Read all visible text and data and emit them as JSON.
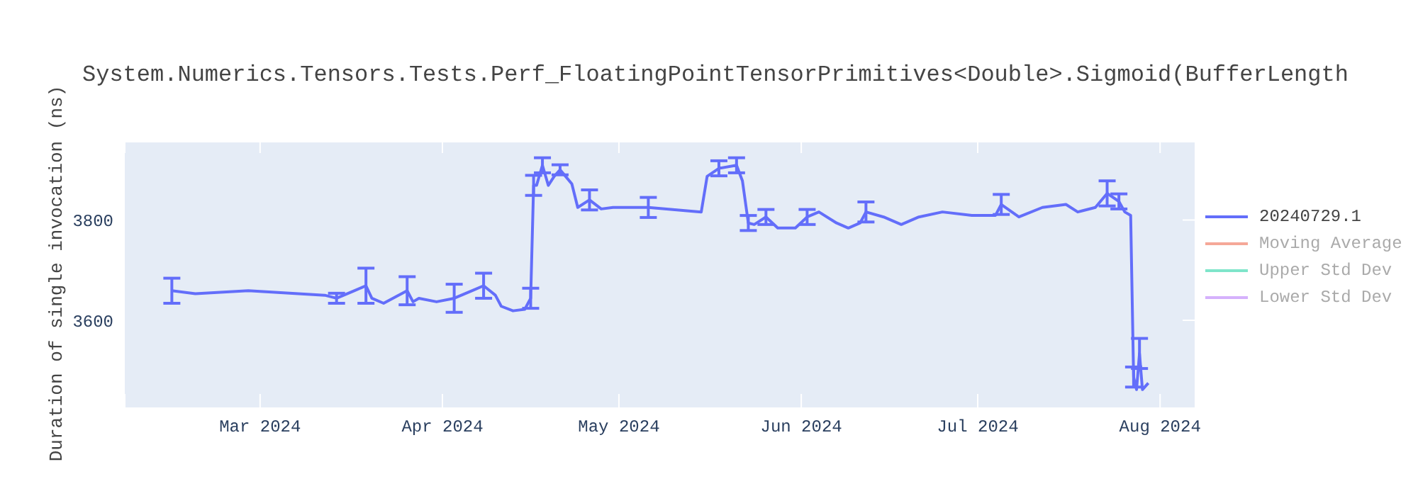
{
  "chart_data": {
    "type": "line",
    "title": "System.Numerics.Tensors.Tests.Perf_FloatingPointTensorPrimitives<Double>.Sigmoid(BufferLength",
    "ylabel": "Duration of single invocation (ns)",
    "xlim": [
      "2024-02-07",
      "2024-08-07"
    ],
    "xticks": [
      {
        "value": "2024-03-01",
        "label": "Mar 2024"
      },
      {
        "value": "2024-04-01",
        "label": "Apr 2024"
      },
      {
        "value": "2024-05-01",
        "label": "May 2024"
      },
      {
        "value": "2024-06-01",
        "label": "Jun 2024"
      },
      {
        "value": "2024-07-01",
        "label": "Jul 2024"
      },
      {
        "value": "2024-08-01",
        "label": "Aug 2024"
      }
    ],
    "ylim": [
      3425,
      3956
    ],
    "yticks": [
      3600,
      3800
    ],
    "grid": true,
    "legend": "top right",
    "marker": "none",
    "line_style": "solid",
    "x": [
      "2024-02-15",
      "2024-02-19",
      "2024-02-28",
      "2024-03-12",
      "2024-03-14",
      "2024-03-17",
      "2024-03-19",
      "2024-03-20",
      "2024-03-22",
      "2024-03-26",
      "2024-03-27",
      "2024-03-28",
      "2024-03-31",
      "2024-04-03",
      "2024-04-06",
      "2024-04-08",
      "2024-04-10",
      "2024-04-11",
      "2024-04-13",
      "2024-04-15",
      "2024-04-16",
      "2024-04-16T12:00",
      "2024-04-17",
      "2024-04-18",
      "2024-04-19",
      "2024-04-20",
      "2024-04-21",
      "2024-04-23",
      "2024-04-24",
      "2024-04-26",
      "2024-04-28",
      "2024-04-30",
      "2024-05-04",
      "2024-05-06",
      "2024-05-15",
      "2024-05-16",
      "2024-05-18",
      "2024-05-21",
      "2024-05-22",
      "2024-05-23",
      "2024-05-24",
      "2024-05-26",
      "2024-05-28",
      "2024-05-31",
      "2024-06-02",
      "2024-06-04",
      "2024-06-07",
      "2024-06-09",
      "2024-06-11",
      "2024-06-12",
      "2024-06-15",
      "2024-06-18",
      "2024-06-21",
      "2024-06-25",
      "2024-06-30",
      "2024-07-04",
      "2024-07-05",
      "2024-07-08",
      "2024-07-12",
      "2024-07-16",
      "2024-07-18",
      "2024-07-21",
      "2024-07-23",
      "2024-07-25",
      "2024-07-26",
      "2024-07-27",
      "2024-07-27T12:00",
      "2024-07-28",
      "2024-07-28T12:00",
      "2024-07-29",
      "2024-07-30"
    ],
    "series": [
      {
        "name": "20240729.1",
        "color": "#636efa",
        "values": [
          3659,
          3653,
          3659,
          3650,
          3644,
          3659,
          3669,
          3644,
          3634,
          3659,
          3637,
          3644,
          3637,
          3644,
          3659,
          3669,
          3650,
          3628,
          3619,
          3622,
          3644,
          3869,
          3869,
          3909,
          3869,
          3887,
          3900,
          3872,
          3825,
          3840,
          3822,
          3825,
          3825,
          3825,
          3816,
          3887,
          3903,
          3909,
          3878,
          3794,
          3791,
          3806,
          3784,
          3784,
          3806,
          3816,
          3794,
          3784,
          3794,
          3816,
          3806,
          3791,
          3806,
          3816,
          3809,
          3809,
          3831,
          3806,
          3825,
          3831,
          3816,
          3825,
          3853,
          3837,
          3816,
          3809,
          3487,
          3462,
          3534,
          3462,
          3475
        ],
        "errors": [
          25,
          null,
          null,
          null,
          10,
          null,
          35,
          null,
          null,
          28,
          null,
          null,
          null,
          28,
          null,
          25,
          null,
          null,
          null,
          null,
          20,
          20,
          null,
          15,
          null,
          null,
          10,
          null,
          null,
          20,
          null,
          null,
          null,
          20,
          null,
          null,
          15,
          15,
          null,
          15,
          null,
          15,
          null,
          null,
          15,
          null,
          null,
          null,
          null,
          20,
          null,
          null,
          null,
          null,
          null,
          null,
          20,
          null,
          null,
          null,
          null,
          null,
          25,
          15,
          null,
          null,
          20,
          null,
          30,
          null,
          null
        ]
      },
      {
        "name": "Moving Average",
        "color": "#f5a898",
        "values": [
          null,
          null,
          null,
          null,
          null,
          null,
          null,
          null,
          null,
          null,
          null,
          null,
          null,
          null,
          null,
          null,
          null,
          null,
          null,
          null,
          null,
          null,
          null,
          null,
          null,
          null,
          null,
          null,
          null,
          null,
          null,
          null,
          null,
          null,
          null,
          null,
          null,
          null,
          null,
          null,
          null,
          null,
          null,
          null,
          null,
          null,
          null,
          null,
          null,
          null,
          null,
          null,
          null,
          null,
          null,
          null,
          null,
          null,
          null,
          null,
          null,
          null,
          null,
          null,
          null,
          null,
          null,
          null,
          null,
          null,
          null
        ]
      },
      {
        "name": "Upper Std Dev",
        "color": "#7fe5ca",
        "values": [
          null,
          null,
          null,
          null,
          null,
          null,
          null,
          null,
          null,
          null,
          null,
          null,
          null,
          null,
          null,
          null,
          null,
          null,
          null,
          null,
          null,
          null,
          null,
          null,
          null,
          null,
          null,
          null,
          null,
          null,
          null,
          null,
          null,
          null,
          null,
          null,
          null,
          null,
          null,
          null,
          null,
          null,
          null,
          null,
          null,
          null,
          null,
          null,
          null,
          null,
          null,
          null,
          null,
          null,
          null,
          null,
          null,
          null,
          null,
          null,
          null,
          null,
          null,
          null,
          null,
          null,
          null,
          null,
          null,
          null,
          null
        ]
      },
      {
        "name": "Lower Std Dev",
        "color": "#d5b1fc",
        "values": [
          null,
          null,
          null,
          null,
          null,
          null,
          null,
          null,
          null,
          null,
          null,
          null,
          null,
          null,
          null,
          null,
          null,
          null,
          null,
          null,
          null,
          null,
          null,
          null,
          null,
          null,
          null,
          null,
          null,
          null,
          null,
          null,
          null,
          null,
          null,
          null,
          null,
          null,
          null,
          null,
          null,
          null,
          null,
          null,
          null,
          null,
          null,
          null,
          null,
          null,
          null,
          null,
          null,
          null,
          null,
          null,
          null,
          null,
          null,
          null,
          null,
          null,
          null,
          null,
          null,
          null,
          null,
          null,
          null,
          null,
          null
        ]
      }
    ]
  }
}
